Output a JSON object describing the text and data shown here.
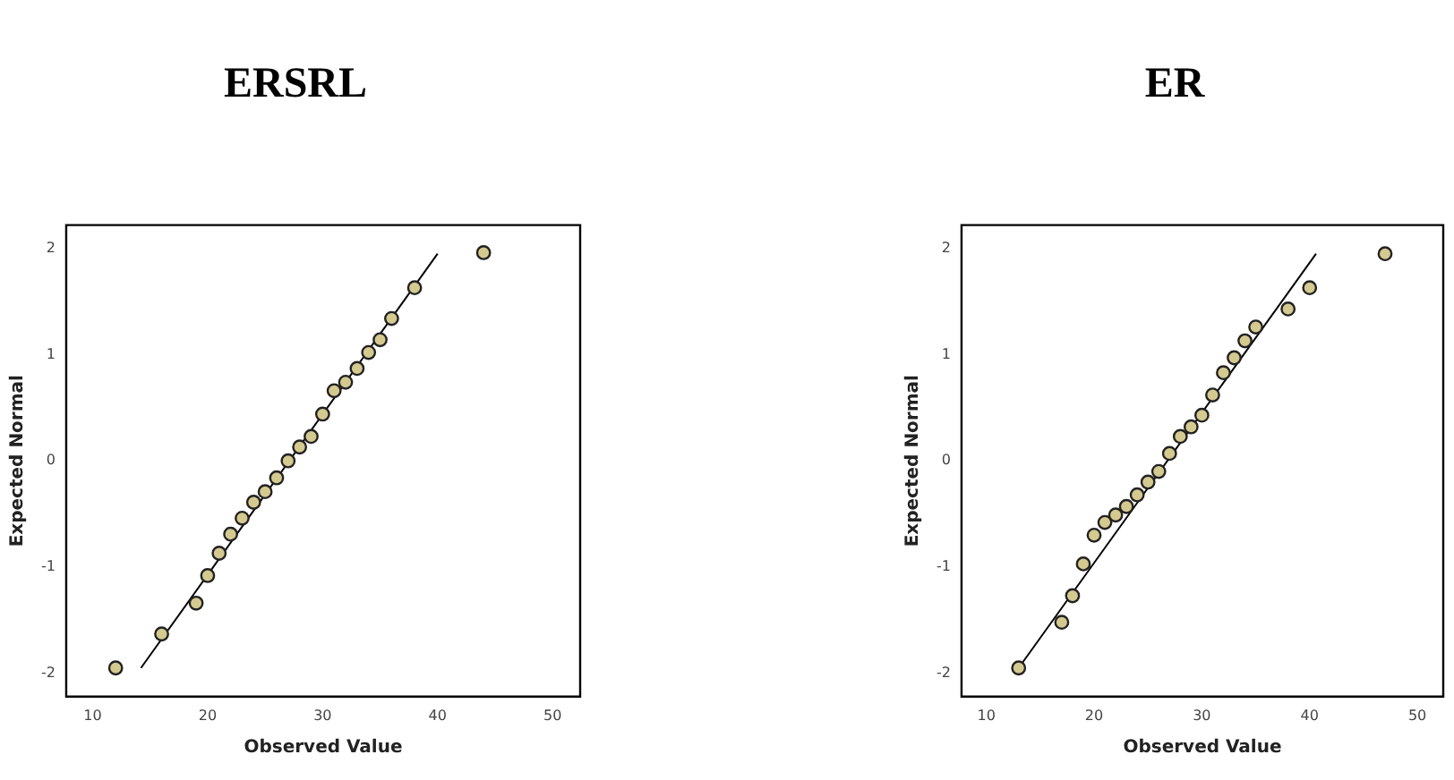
{
  "chart_data": [
    {
      "type": "scatter",
      "title": "ERSRL",
      "xlabel": "Observed Value",
      "ylabel": "Expected Normal",
      "xlim": [
        7.7,
        52.4
      ],
      "ylim": [
        -2.22,
        2.22
      ],
      "xticks": [
        10,
        20,
        30,
        40,
        50
      ],
      "yticks": [
        -2,
        -1,
        0,
        1,
        2
      ],
      "grid": false,
      "legend": false,
      "series": [
        {
          "marker": "circle",
          "color": "#d4c98f",
          "x": [
            12,
            16,
            19,
            20,
            21,
            22,
            23,
            24,
            25,
            26,
            27,
            28,
            29,
            30,
            31,
            32,
            33,
            34,
            35,
            36,
            38,
            44
          ],
          "values": [
            -1.95,
            -1.63,
            -1.34,
            -1.08,
            -0.87,
            -0.69,
            -0.54,
            -0.39,
            -0.29,
            -0.16,
            0,
            0.13,
            0.23,
            0.44,
            0.66,
            0.74,
            0.87,
            1.02,
            1.14,
            1.34,
            1.63,
            1.96
          ]
        },
        {
          "type": "line",
          "marker": "none",
          "color": "#000000",
          "x": [
            14.2,
            40
          ],
          "values": [
            -1.95,
            1.95
          ]
        }
      ]
    },
    {
      "type": "scatter",
      "title": "ER",
      "xlabel": "Observed Value",
      "ylabel": "Expected Normal",
      "xlim": [
        7.7,
        52.4
      ],
      "ylim": [
        -2.22,
        2.22
      ],
      "xticks": [
        10,
        20,
        30,
        40,
        50
      ],
      "yticks": [
        -2,
        -1,
        0,
        1,
        2
      ],
      "grid": false,
      "legend": false,
      "series": [
        {
          "marker": "circle",
          "color": "#d4c98f",
          "x": [
            13,
            17,
            18,
            19,
            20,
            21,
            22,
            23,
            24,
            25,
            26,
            27,
            28,
            29,
            30,
            31,
            32,
            33,
            34,
            35,
            38,
            40,
            47
          ],
          "values": [
            -1.95,
            -1.52,
            -1.27,
            -0.97,
            -0.7,
            -0.58,
            -0.51,
            -0.43,
            -0.32,
            -0.2,
            -0.1,
            0.07,
            0.23,
            0.32,
            0.43,
            0.62,
            0.83,
            0.97,
            1.13,
            1.26,
            1.43,
            1.63,
            1.95
          ]
        },
        {
          "type": "line",
          "marker": "none",
          "color": "#000000",
          "x": [
            13,
            40.6
          ],
          "values": [
            -1.95,
            1.95
          ]
        }
      ]
    }
  ]
}
